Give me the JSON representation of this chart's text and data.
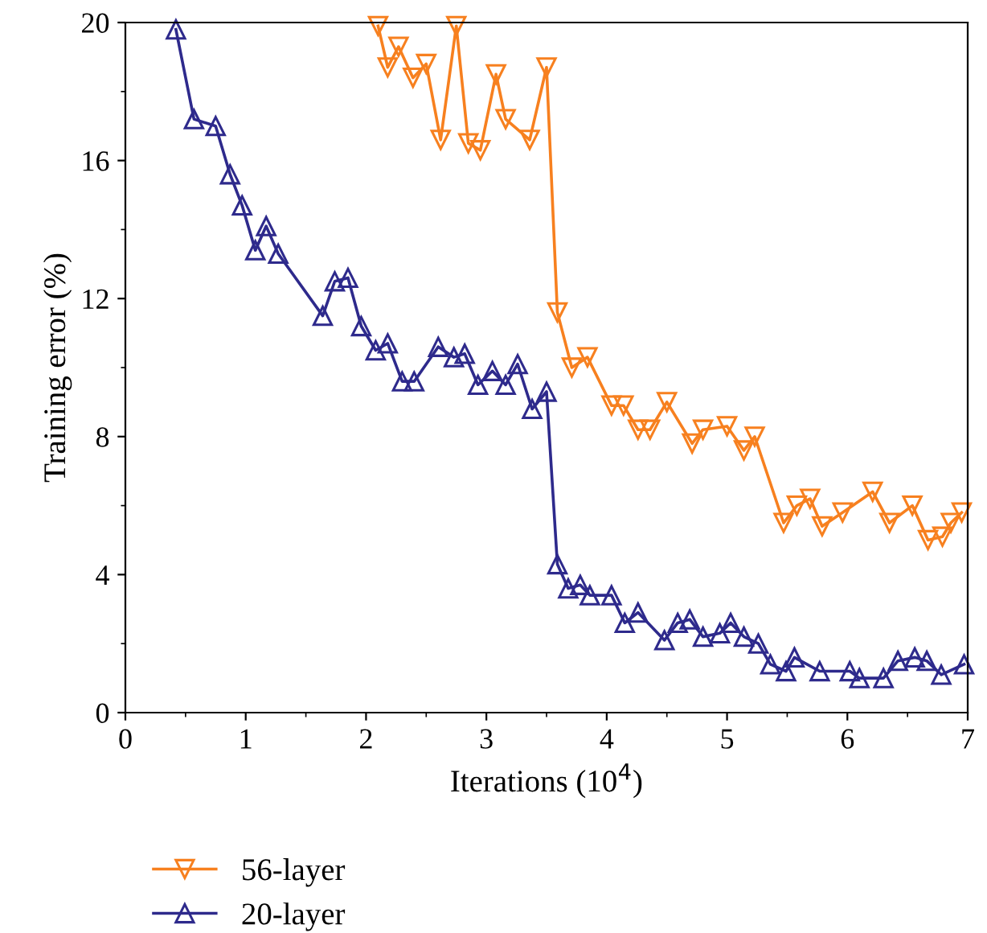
{
  "chart_data": {
    "type": "line",
    "xlabel": "Iterations (10$^{4}$)",
    "ylabel": "Training error (%)",
    "xlim": [
      0,
      7
    ],
    "ylim": [
      0,
      20
    ],
    "xticks": [
      0,
      1,
      2,
      3,
      4,
      5,
      6,
      7
    ],
    "yticks": [
      0,
      4,
      8,
      12,
      16,
      20
    ],
    "grid": false,
    "legend": "bottom left",
    "series": [
      {
        "name": "56-layer",
        "color": "#f7801f",
        "marker": "triangle_down",
        "x": [
          2.1,
          2.18,
          2.27,
          2.39,
          2.5,
          2.62,
          2.75,
          2.85,
          2.95,
          3.08,
          3.16,
          3.36,
          3.5,
          3.59,
          3.71,
          3.84,
          4.04,
          4.14,
          4.26,
          4.36,
          4.5,
          4.71,
          4.8,
          5.0,
          5.14,
          5.23,
          5.47,
          5.58,
          5.69,
          5.79,
          5.96,
          6.21,
          6.35,
          6.54,
          6.67,
          6.79,
          6.86,
          6.95
        ],
        "values": [
          19.9,
          18.7,
          19.3,
          18.4,
          18.8,
          16.6,
          19.9,
          16.5,
          16.3,
          18.5,
          17.2,
          16.6,
          18.7,
          11.6,
          10.0,
          10.3,
          8.9,
          8.9,
          8.2,
          8.2,
          9.0,
          7.8,
          8.2,
          8.3,
          7.6,
          8.0,
          5.5,
          6.0,
          6.2,
          5.4,
          5.8,
          6.4,
          5.5,
          6.0,
          5.0,
          5.1,
          5.5,
          5.8
        ]
      },
      {
        "name": "20-layer",
        "color": "#2e2a8c",
        "marker": "triangle",
        "x": [
          0.42,
          0.57,
          0.75,
          0.87,
          0.97,
          1.08,
          1.17,
          1.27,
          1.64,
          1.74,
          1.85,
          1.96,
          2.08,
          2.18,
          2.3,
          2.4,
          2.6,
          2.73,
          2.82,
          2.93,
          3.05,
          3.16,
          3.26,
          3.38,
          3.5,
          3.59,
          3.68,
          3.78,
          3.86,
          4.04,
          4.15,
          4.26,
          4.48,
          4.59,
          4.69,
          4.8,
          4.94,
          5.03,
          5.14,
          5.26,
          5.36,
          5.49,
          5.56,
          5.77,
          6.02,
          6.1,
          6.3,
          6.42,
          6.56,
          6.66,
          6.78,
          6.97
        ],
        "values": [
          19.8,
          17.2,
          17.0,
          15.6,
          14.7,
          13.4,
          14.1,
          13.3,
          11.5,
          12.5,
          12.6,
          11.2,
          10.5,
          10.7,
          9.6,
          9.6,
          10.6,
          10.3,
          10.4,
          9.5,
          9.9,
          9.5,
          10.1,
          8.8,
          9.3,
          4.3,
          3.6,
          3.7,
          3.4,
          3.4,
          2.6,
          2.9,
          2.1,
          2.6,
          2.7,
          2.2,
          2.3,
          2.6,
          2.2,
          2.0,
          1.4,
          1.2,
          1.6,
          1.2,
          1.2,
          1.0,
          1.0,
          1.5,
          1.6,
          1.5,
          1.1,
          1.4
        ]
      }
    ]
  }
}
